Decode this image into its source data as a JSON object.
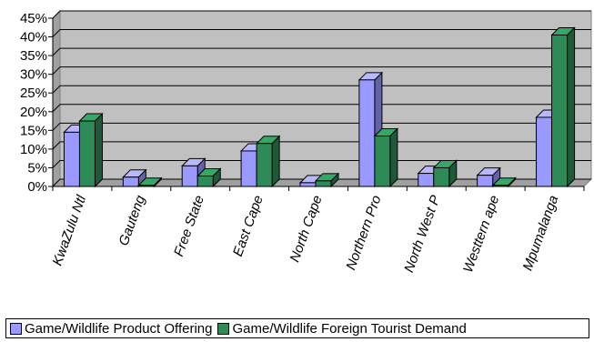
{
  "chart_data": {
    "type": "bar",
    "title": "",
    "xlabel": "",
    "ylabel": "",
    "categories": [
      "KwaZulu Ntl",
      "Gauteng",
      "Free State",
      "East Cape",
      "North Cape",
      "Northern Pro",
      "North West P",
      "Westtern ape",
      "Mpumalanga"
    ],
    "series": [
      {
        "name": "Game/Wildlife Product Offering",
        "color": "#9999ff",
        "values": [
          14.5,
          2.5,
          5.5,
          9.5,
          1.0,
          28.5,
          3.5,
          3.0,
          18.5
        ]
      },
      {
        "name": "Game/Wildlife Foreign Tourist Demand",
        "color": "#2e8b57",
        "values": [
          17.5,
          0.3,
          2.8,
          11.5,
          1.5,
          13.5,
          5.0,
          0.3,
          40.5
        ]
      }
    ],
    "ylim": [
      0,
      45
    ],
    "yticks": [
      "0%",
      "5%",
      "10%",
      "15%",
      "20%",
      "25%",
      "30%",
      "35%",
      "40%",
      "45%"
    ],
    "grid": true,
    "legend_position": "bottom"
  }
}
